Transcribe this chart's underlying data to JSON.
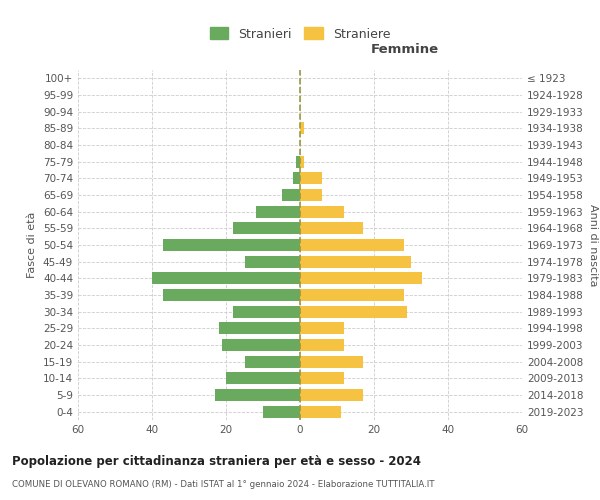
{
  "age_groups": [
    "0-4",
    "5-9",
    "10-14",
    "15-19",
    "20-24",
    "25-29",
    "30-34",
    "35-39",
    "40-44",
    "45-49",
    "50-54",
    "55-59",
    "60-64",
    "65-69",
    "70-74",
    "75-79",
    "80-84",
    "85-89",
    "90-94",
    "95-99",
    "100+"
  ],
  "birth_years": [
    "2019-2023",
    "2014-2018",
    "2009-2013",
    "2004-2008",
    "1999-2003",
    "1994-1998",
    "1989-1993",
    "1984-1988",
    "1979-1983",
    "1974-1978",
    "1969-1973",
    "1964-1968",
    "1959-1963",
    "1954-1958",
    "1949-1953",
    "1944-1948",
    "1939-1943",
    "1934-1938",
    "1929-1933",
    "1924-1928",
    "≤ 1923"
  ],
  "males": [
    10,
    23,
    20,
    15,
    21,
    22,
    18,
    37,
    40,
    15,
    37,
    18,
    12,
    5,
    2,
    1,
    0,
    0,
    0,
    0,
    0
  ],
  "females": [
    11,
    17,
    12,
    17,
    12,
    12,
    29,
    28,
    33,
    30,
    28,
    17,
    12,
    6,
    6,
    1,
    0,
    1,
    0,
    0,
    0
  ],
  "male_color": "#6aaa5e",
  "female_color": "#f5c242",
  "dashed_line_color": "#999944",
  "grid_color": "#cccccc",
  "background_color": "#ffffff",
  "title": "Popolazione per cittadinanza straniera per età e sesso - 2024",
  "subtitle": "COMUNE DI OLEVANO ROMANO (RM) - Dati ISTAT al 1° gennaio 2024 - Elaborazione TUTTITALIA.IT",
  "right_header": "Femmine",
  "ylabel_left": "Fasce di età",
  "ylabel_right": "Anni di nascita",
  "legend_male": "Stranieri",
  "legend_female": "Straniere",
  "xlim": 60,
  "bar_height": 0.72
}
